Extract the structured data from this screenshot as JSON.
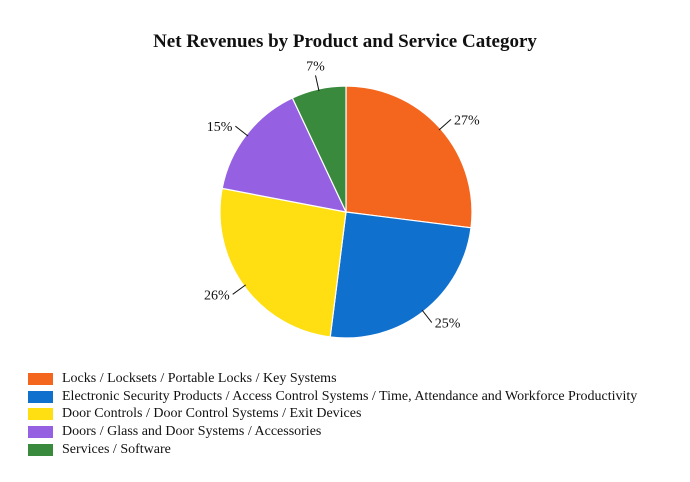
{
  "title": "Net Revenues by Product and Service Category",
  "chart_data": {
    "type": "pie",
    "title": "Net Revenues by Product and Service Category",
    "start_angle": "12 o'clock",
    "direction": "clockwise",
    "legend_position": "bottom-left",
    "data_label_style": "percent outside slices with black leader lines",
    "slices": [
      {
        "label": "Locks / Locksets / Portable Locks / Key Systems",
        "value": 27,
        "percent_label": "27%",
        "color": "#F4661E"
      },
      {
        "label": "Electronic Security Products / Access Control Systems / Time, Attendance and Workforce Productivity",
        "value": 25,
        "percent_label": "25%",
        "color": "#1070CE"
      },
      {
        "label": "Door Controls / Door Control Systems / Exit Devices",
        "value": 26,
        "percent_label": "26%",
        "color": "#FFDE12"
      },
      {
        "label": "Doors / Glass and Door Systems / Accessories",
        "value": 15,
        "percent_label": "15%",
        "color": "#9560E2"
      },
      {
        "label": "Services / Software",
        "value": 7,
        "percent_label": "7%",
        "color": "#3A8A3E"
      }
    ]
  }
}
